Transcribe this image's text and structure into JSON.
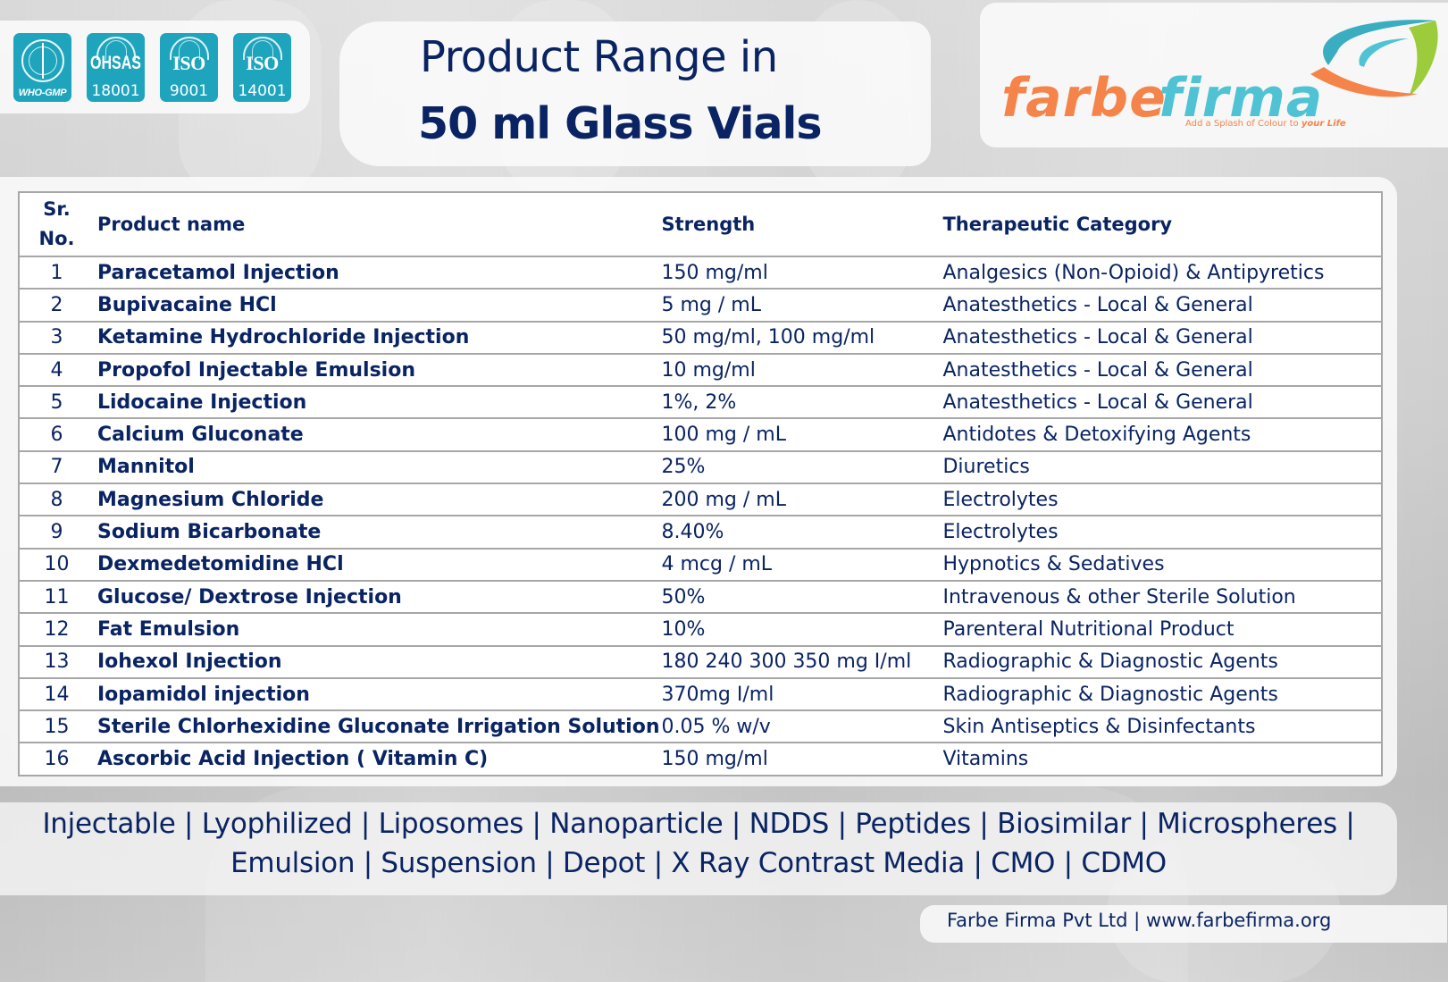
{
  "certifications": [
    {
      "id": "who-gmp",
      "label": "WHO-GMP"
    },
    {
      "id": "ohsas",
      "title": "OHSAS",
      "number": "18001"
    },
    {
      "id": "iso-9001",
      "title": "ISO",
      "number": "9001"
    },
    {
      "id": "iso-14001",
      "title": "ISO",
      "number": "14001"
    }
  ],
  "header": {
    "title_line1": "Product Range in",
    "title_line2": "50 ml Glass Vials"
  },
  "logo": {
    "word1": "farbe",
    "word2": "firma",
    "tagline_prefix": "Add a Splash of Colour to ",
    "tagline_emphasis": "your Life",
    "colors": {
      "orange": "#f5844a",
      "teal": "#4fc3d3",
      "green": "#9ccc3c"
    }
  },
  "table": {
    "headers": {
      "sr_line1": "Sr.",
      "sr_line2": "No.",
      "product_name": "Product name",
      "strength": "Strength",
      "category": "Therapeutic Category"
    },
    "rows": [
      {
        "sr": "1",
        "name": "Paracetamol Injection",
        "strength": "150 mg/ml",
        "category": "Analgesics (Non-Opioid) & Antipyretics"
      },
      {
        "sr": "2",
        "name": "Bupivacaine HCl",
        "strength": "5 mg / mL",
        "category": "Anatesthetics - Local & General"
      },
      {
        "sr": "3",
        "name": "Ketamine Hydrochloride Injection",
        "strength": "50 mg/ml, 100 mg/ml",
        "category": "Anatesthetics - Local & General"
      },
      {
        "sr": "4",
        "name": "Propofol Injectable Emulsion",
        "strength": "10 mg/ml",
        "category": "Anatesthetics - Local & General"
      },
      {
        "sr": "5",
        "name": "Lidocaine Injection",
        "strength": "1%, 2%",
        "category": "Anatesthetics - Local & General"
      },
      {
        "sr": "6",
        "name": "Calcium Gluconate",
        "strength": "100 mg / mL",
        "category": "Antidotes & Detoxifying Agents"
      },
      {
        "sr": "7",
        "name": "Mannitol",
        "strength": "25%",
        "category": "Diuretics"
      },
      {
        "sr": "8",
        "name": "Magnesium Chloride",
        "strength": "200 mg / mL",
        "category": "Electrolytes"
      },
      {
        "sr": "9",
        "name": "Sodium Bicarbonate",
        "strength": "8.40%",
        "category": "Electrolytes"
      },
      {
        "sr": "10",
        "name": "Dexmedetomidine HCl",
        "strength": "4 mcg / mL",
        "category": "Hypnotics & Sedatives"
      },
      {
        "sr": "11",
        "name": "Glucose/ Dextrose Injection",
        "strength": "50%",
        "category": "Intravenous & other Sterile Solution"
      },
      {
        "sr": "12",
        "name": "Fat Emulsion",
        "strength": "10%",
        "category": "Parenteral Nutritional Product"
      },
      {
        "sr": "13",
        "name": "Iohexol Injection",
        "strength": "180 240 300 350 mg I/ml",
        "category": "Radiographic & Diagnostic Agents"
      },
      {
        "sr": "14",
        "name": "Iopamidol injection",
        "strength": "370mg I/ml",
        "category": "Radiographic & Diagnostic Agents"
      },
      {
        "sr": "15",
        "name": "Sterile Chlorhexidine Gluconate Irrigation Solution",
        "strength": "0.05 % w/v",
        "category": "Skin Antiseptics & Disinfectants"
      },
      {
        "sr": "16",
        "name": "Ascorbic Acid Injection ( Vitamin C)",
        "strength": "150 mg/ml",
        "category": "Vitamins"
      }
    ]
  },
  "capabilities": {
    "line1": "Injectable | Lyophilized | Liposomes | Nanoparticle | NDDS | Peptides | Biosimilar | Microspheres |",
    "line2": "Emulsion | Suspension | Depot | X Ray Contrast Media | CMO | CDMO"
  },
  "footer": {
    "text": "Farbe Firma Pvt Ltd | www.farbefirma.org"
  },
  "colors": {
    "text_navy": "#0a2463",
    "badge_teal": "#1ea5bd",
    "table_border": "#a7a7a7"
  }
}
